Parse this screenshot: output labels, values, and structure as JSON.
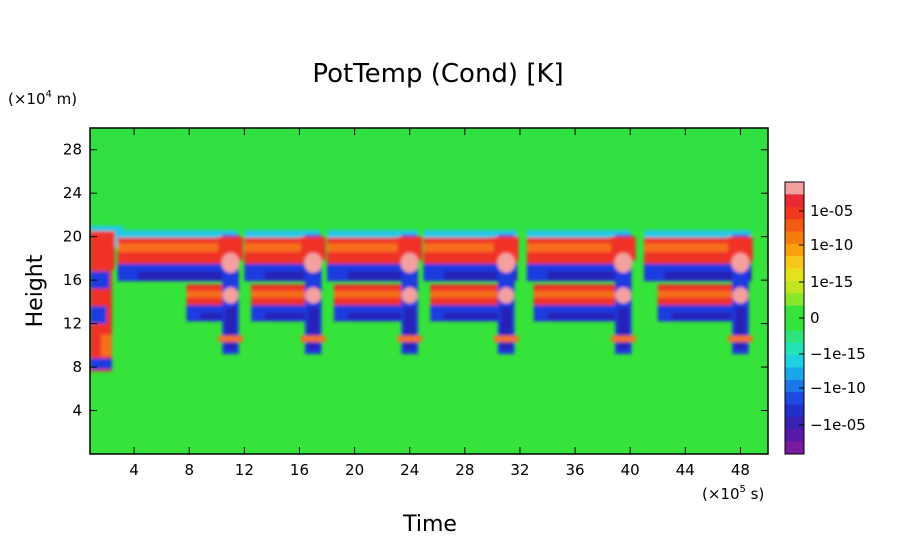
{
  "chart_data": {
    "type": "heatmap",
    "title": "PotTemp (Cond) [K]",
    "xlabel": "Time",
    "ylabel": "Height",
    "x_unit": {
      "prefix": "(×10",
      "exp": "5",
      "suffix": " s)"
    },
    "y_unit": {
      "prefix": "(×10",
      "exp": "4",
      "suffix": " m)"
    },
    "xlim": [
      0.8,
      50
    ],
    "ylim": [
      0,
      30
    ],
    "xticks": [
      4,
      8,
      12,
      16,
      20,
      24,
      28,
      32,
      36,
      40,
      44,
      48
    ],
    "yticks": [
      4,
      8,
      12,
      16,
      20,
      24,
      28
    ],
    "background_value": "0",
    "colorbar": {
      "labels": [
        "1e-05",
        "1e-10",
        "1e-15",
        "0",
        "−1e-15",
        "−1e-10",
        "−1e-05"
      ],
      "colors": [
        "#f4a0a0",
        "#e82a34",
        "#f0381e",
        "#f35a12",
        "#f77c0e",
        "#faa00c",
        "#f7c81a",
        "#e6e11e",
        "#c0e622",
        "#8ae628",
        "#36e33a",
        "#36e33a",
        "#2ee37c",
        "#25e3b8",
        "#1fd0e0",
        "#1aa8ea",
        "#1a78ea",
        "#1e4ae0",
        "#2030c8",
        "#3a22b0",
        "#5a18a8",
        "#7a1aa0"
      ]
    },
    "features": {
      "positive_band_upper": {
        "height_range": [
          16.5,
          20
        ],
        "value": "positive"
      },
      "negative_band_upper": {
        "height_range": [
          15.5,
          17
        ],
        "value": "negative"
      },
      "positive_band_lower": {
        "height_range": [
          13.5,
          16
        ],
        "value": "positive"
      },
      "negative_band_lower": {
        "height_range": [
          12,
          13.5
        ],
        "value": "negative"
      },
      "cycle_spikes_time": [
        11,
        17,
        24,
        31,
        39.5,
        48
      ],
      "spike_height_range": [
        9,
        20
      ]
    }
  },
  "colors": {
    "background_green": "#36e33a",
    "upper_green": "#30e040",
    "red": "#f03028",
    "orange": "#f6701a",
    "blue": "#1e3ae0",
    "navy": "#2622b8",
    "cyan": "#22c8e8",
    "pink": "#f4a0a0"
  }
}
